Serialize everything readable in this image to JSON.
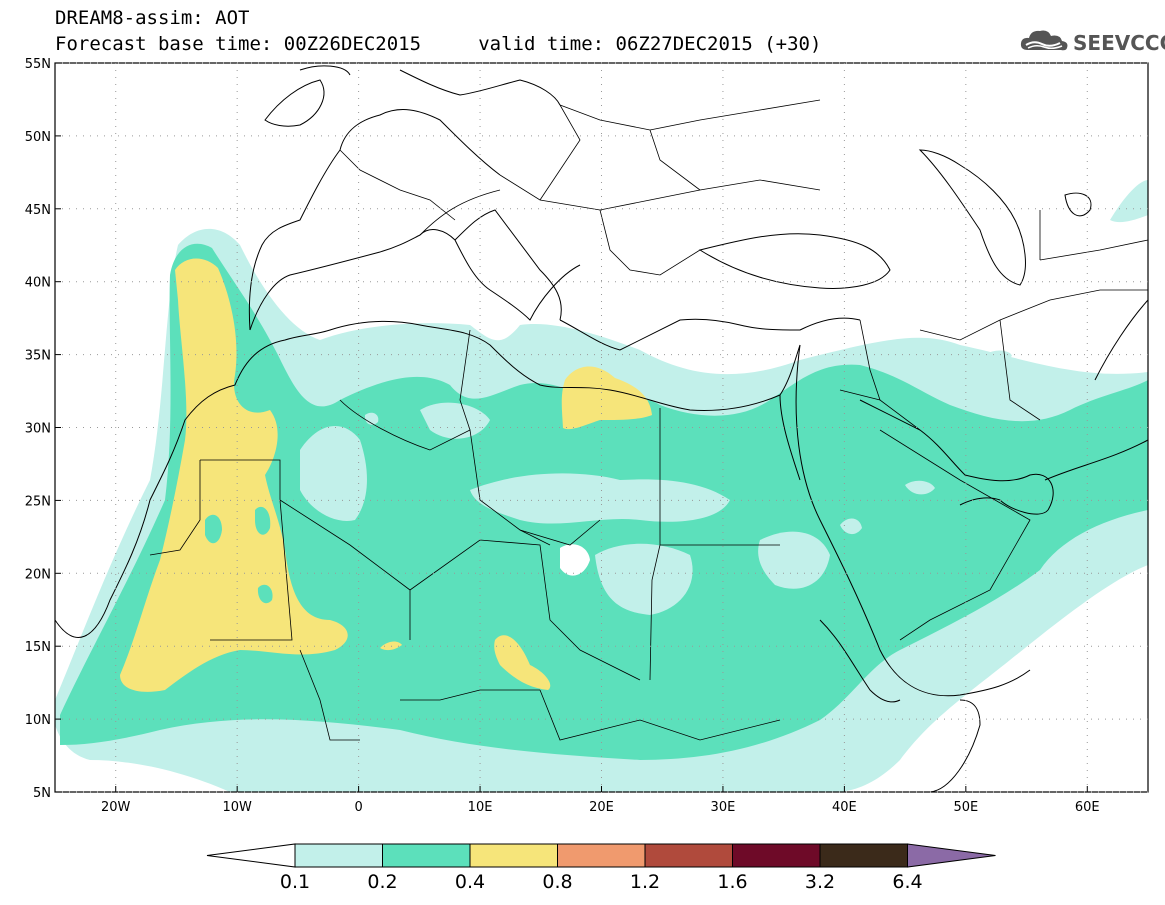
{
  "header": {
    "line1": "DREAM8-assim: AOT",
    "line2": "Forecast base time: 00Z26DEC2015     valid time: 06Z27DEC2015 (+30)",
    "logo_text": "SEEVCCC",
    "logo_icon": "cloud-icon"
  },
  "map": {
    "lon_range": [
      -25,
      65
    ],
    "lat_range": [
      5,
      55
    ],
    "lon_ticks": [
      {
        "value": -20,
        "label": "20W"
      },
      {
        "value": -10,
        "label": "10W"
      },
      {
        "value": 0,
        "label": "0"
      },
      {
        "value": 10,
        "label": "10E"
      },
      {
        "value": 20,
        "label": "20E"
      },
      {
        "value": 30,
        "label": "30E"
      },
      {
        "value": 40,
        "label": "40E"
      },
      {
        "value": 50,
        "label": "50E"
      },
      {
        "value": 60,
        "label": "60E"
      }
    ],
    "lat_ticks": [
      {
        "value": 5,
        "label": "5N"
      },
      {
        "value": 10,
        "label": "10N"
      },
      {
        "value": 15,
        "label": "15N"
      },
      {
        "value": 20,
        "label": "20N"
      },
      {
        "value": 25,
        "label": "25N"
      },
      {
        "value": 30,
        "label": "30N"
      },
      {
        "value": 35,
        "label": "35N"
      },
      {
        "value": 40,
        "label": "40N"
      },
      {
        "value": 45,
        "label": "45N"
      },
      {
        "value": 50,
        "label": "50N"
      },
      {
        "value": 55,
        "label": "55N"
      }
    ],
    "grid": true
  },
  "colorbar": {
    "min_color": "#ffffff",
    "max_color": "#8b6aa6",
    "segments": [
      {
        "color": "#c2f0ea",
        "from": 0.1,
        "to": 0.2
      },
      {
        "color": "#5ce0bb",
        "from": 0.2,
        "to": 0.4
      },
      {
        "color": "#f6e57a",
        "from": 0.4,
        "to": 0.8
      },
      {
        "color": "#f09a6e",
        "from": 0.8,
        "to": 1.2
      },
      {
        "color": "#b04a3c",
        "from": 1.2,
        "to": 1.6
      },
      {
        "color": "#6e0a28",
        "from": 1.6,
        "to": 3.2
      },
      {
        "color": "#3b2a1a",
        "from": 3.2,
        "to": 6.4
      }
    ],
    "labels": [
      "0.1",
      "0.2",
      "0.4",
      "0.8",
      "1.2",
      "1.6",
      "3.2",
      "6.4"
    ]
  }
}
